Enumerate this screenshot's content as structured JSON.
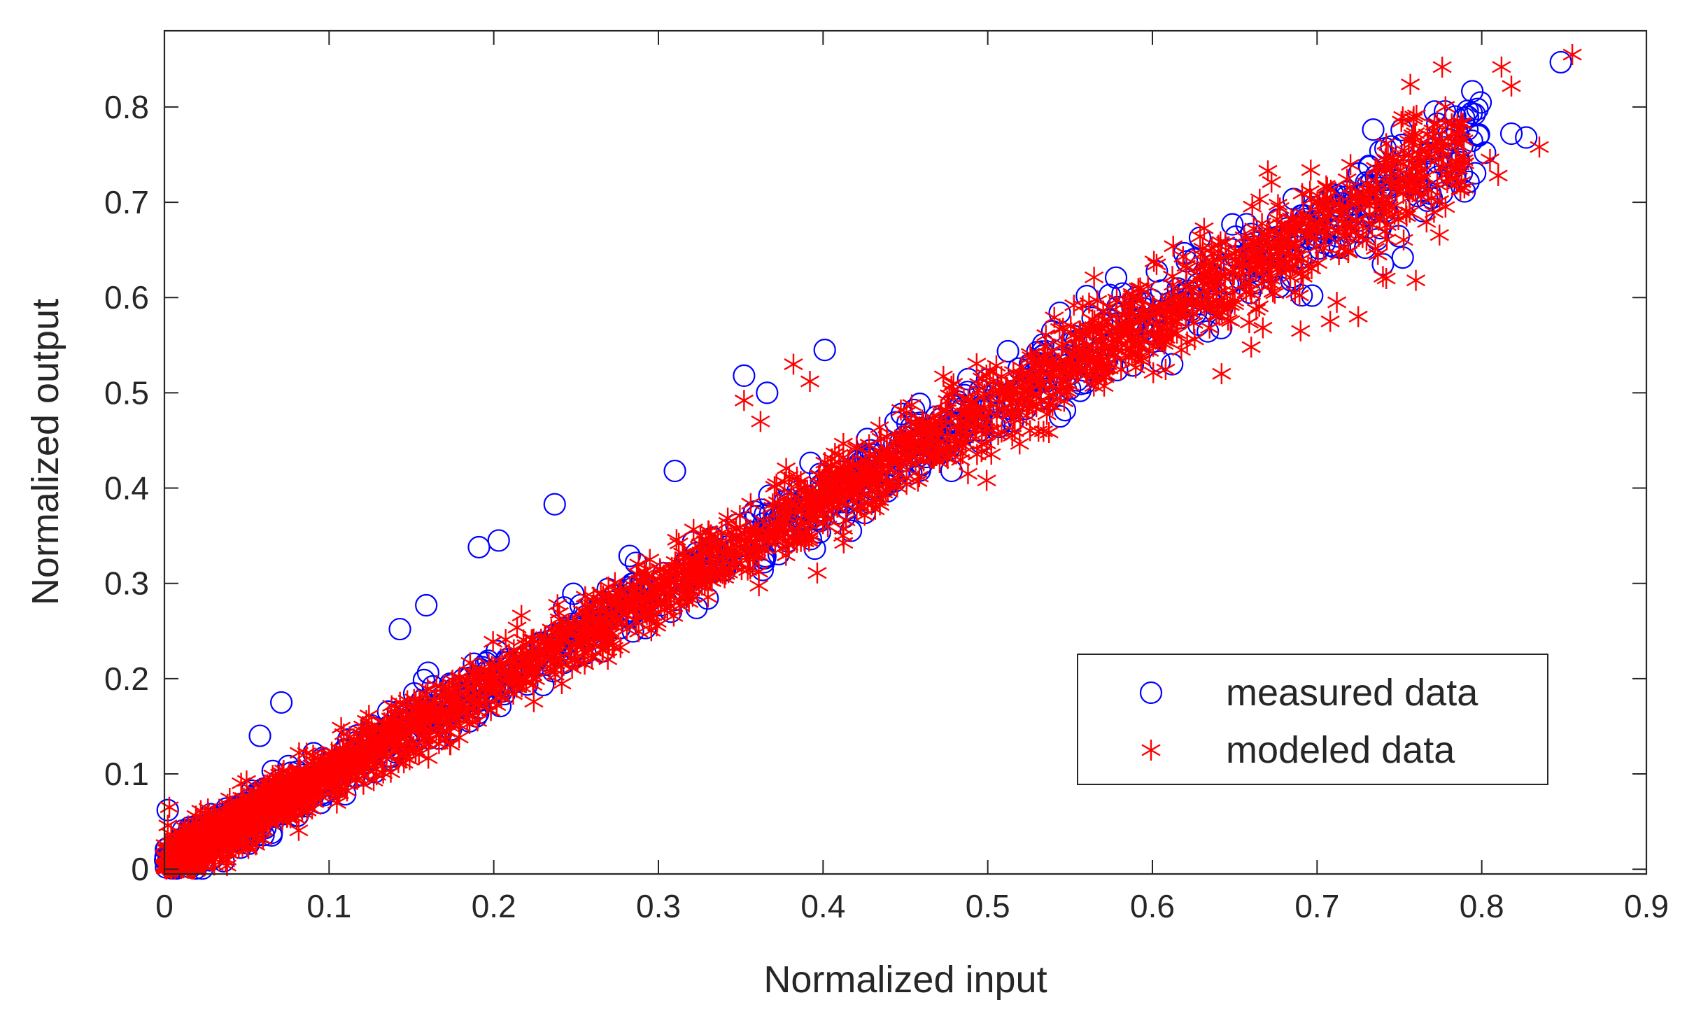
{
  "chart_data": {
    "type": "scatter",
    "title": "",
    "xlabel": "Normalized input",
    "ylabel": "Normalized output",
    "xlim": [
      0,
      0.9
    ],
    "ylim": [
      -0.005,
      0.88
    ],
    "xticks": [
      0,
      0.1,
      0.2,
      0.3,
      0.4,
      0.5,
      0.6,
      0.7,
      0.8,
      0.9
    ],
    "xtick_labels": [
      "0",
      "0.1",
      "0.2",
      "0.3",
      "0.4",
      "0.5",
      "0.6",
      "0.7",
      "0.8",
      "0.9"
    ],
    "yticks": [
      0,
      0.1,
      0.2,
      0.3,
      0.4,
      0.5,
      0.6,
      0.7,
      0.8
    ],
    "ytick_labels": [
      "0",
      "0.1",
      "0.2",
      "0.3",
      "0.4",
      "0.5",
      "0.6",
      "0.7",
      "0.8"
    ],
    "grid": false,
    "legend": {
      "location": "bottom-right"
    },
    "series": [
      {
        "name": "measured data",
        "marker": "circle",
        "color": "#0000ff",
        "trend": {
          "slope": 0.96,
          "intercept": 0.005,
          "spread": 0.02,
          "x_range": [
            0,
            0.8
          ],
          "count": 1100
        },
        "outliers": [
          [
            0.848,
            0.847
          ],
          [
            0.827,
            0.768
          ],
          [
            0.818,
            0.772
          ],
          [
            0.802,
            0.752
          ],
          [
            0.784,
            0.73
          ],
          [
            0.752,
            0.642
          ],
          [
            0.74,
            0.635
          ],
          [
            0.697,
            0.602
          ],
          [
            0.612,
            0.53
          ],
          [
            0.352,
            0.518
          ],
          [
            0.401,
            0.545
          ],
          [
            0.366,
            0.5
          ],
          [
            0.237,
            0.383
          ],
          [
            0.191,
            0.338
          ],
          [
            0.203,
            0.345
          ],
          [
            0.159,
            0.277
          ],
          [
            0.143,
            0.252
          ],
          [
            0.071,
            0.175
          ],
          [
            0.058,
            0.14
          ],
          [
            0.002,
            0.062
          ],
          [
            0.46,
            0.425
          ],
          [
            0.478,
            0.418
          ],
          [
            0.428,
            0.385
          ],
          [
            0.321,
            0.343
          ],
          [
            0.31,
            0.418
          ]
        ]
      },
      {
        "name": "modeled data",
        "marker": "asterisk",
        "color": "#ff0000",
        "trend": {
          "slope": 0.955,
          "intercept": 0.005,
          "spread": 0.022,
          "x_range": [
            0,
            0.79
          ],
          "count": 2600
        },
        "outliers": [
          [
            0.855,
            0.855
          ],
          [
            0.812,
            0.842
          ],
          [
            0.818,
            0.822
          ],
          [
            0.835,
            0.758
          ],
          [
            0.81,
            0.728
          ],
          [
            0.805,
            0.745
          ],
          [
            0.778,
            0.695
          ],
          [
            0.76,
            0.618
          ],
          [
            0.742,
            0.62
          ],
          [
            0.708,
            0.575
          ],
          [
            0.712,
            0.595
          ],
          [
            0.66,
            0.548
          ],
          [
            0.642,
            0.52
          ],
          [
            0.592,
            0.55
          ],
          [
            0.55,
            0.508
          ],
          [
            0.488,
            0.415
          ],
          [
            0.412,
            0.35
          ],
          [
            0.382,
            0.53
          ],
          [
            0.392,
            0.512
          ],
          [
            0.352,
            0.492
          ],
          [
            0.362,
            0.47
          ],
          [
            0.003,
            0.065
          ],
          [
            0.74,
            0.622
          ],
          [
            0.725,
            0.58
          ],
          [
            0.69,
            0.565
          ]
        ]
      }
    ]
  }
}
